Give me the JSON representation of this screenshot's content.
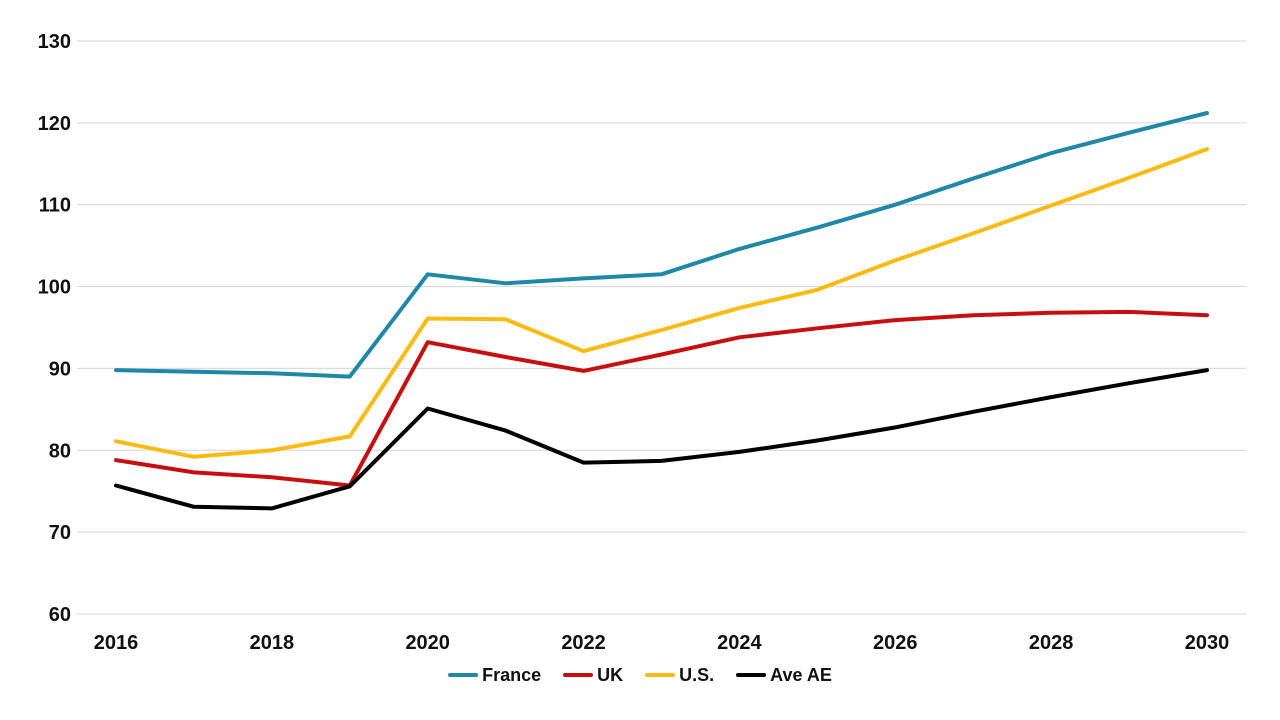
{
  "chart_data": {
    "type": "line",
    "title": "",
    "xlabel": "",
    "ylabel": "",
    "x": [
      2016,
      2017,
      2018,
      2019,
      2020,
      2021,
      2022,
      2023,
      2024,
      2025,
      2026,
      2027,
      2028,
      2029,
      2030
    ],
    "x_tick_labels": [
      "2016",
      "2018",
      "2020",
      "2022",
      "2024",
      "2026",
      "2028",
      "2030"
    ],
    "ylim": [
      60,
      130
    ],
    "ytick_step": 10,
    "y_tick_labels": [
      "60",
      "70",
      "80",
      "90",
      "100",
      "110",
      "120",
      "130"
    ],
    "grid": "horizontal",
    "legend_position": "bottom-center",
    "series": [
      {
        "name": "France",
        "color": "#1F87A8",
        "values": [
          89.8,
          89.6,
          89.4,
          89.0,
          101.5,
          100.4,
          101.0,
          101.5,
          104.6,
          107.2,
          110.0,
          113.2,
          116.3,
          118.8,
          121.2
        ]
      },
      {
        "name": "UK",
        "color": "#C80F0F",
        "values": [
          78.8,
          77.3,
          76.7,
          75.7,
          93.2,
          91.4,
          89.7,
          91.7,
          93.8,
          94.9,
          95.9,
          96.5,
          96.8,
          96.9,
          96.5
        ]
      },
      {
        "name": "U.S.",
        "color": "#FDBA12",
        "values": [
          81.1,
          79.2,
          80.0,
          81.7,
          96.1,
          96.0,
          92.1,
          94.7,
          97.4,
          99.6,
          103.2,
          106.5,
          109.9,
          113.3,
          116.8
        ]
      },
      {
        "name": "Ave AE",
        "color": "#000000",
        "values": [
          75.7,
          73.1,
          72.9,
          75.6,
          85.1,
          82.4,
          78.5,
          78.7,
          79.8,
          81.2,
          82.8,
          84.7,
          86.5,
          88.2,
          89.8
        ]
      }
    ],
    "styles": {
      "background": "#FFFFFF",
      "gridline_color": "#D6D6D6",
      "label_color": "#111111"
    }
  }
}
